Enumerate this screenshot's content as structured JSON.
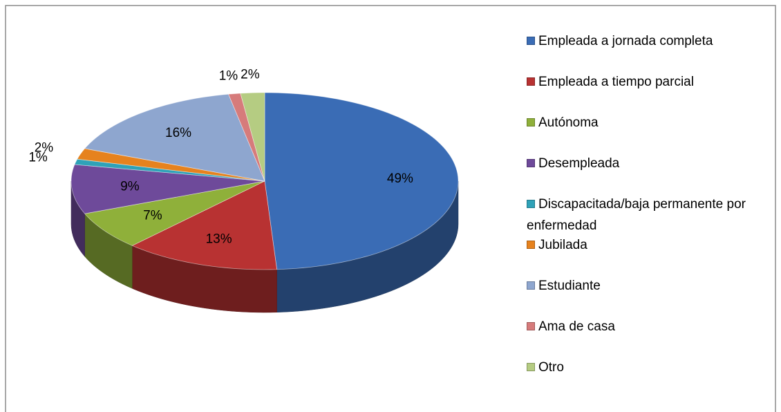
{
  "chart_data": {
    "type": "pie",
    "categories": [
      "Empleada a jornada completa",
      "Empleada a tiempo parcial",
      "Autónoma",
      "Desempleada",
      "Discapacitada/baja permanente por enfermedad",
      "Jubilada",
      "Estudiante",
      "Ama de casa",
      "Otro"
    ],
    "values": [
      49,
      13,
      7,
      9,
      1,
      2,
      16,
      1,
      2
    ],
    "value_labels": [
      "49%",
      "13%",
      "7%",
      "9%",
      "1%",
      "2%",
      "16%",
      "1%",
      "2%"
    ],
    "colors": [
      "#3a6cb5",
      "#b83232",
      "#8fb03a",
      "#6e4a9a",
      "#2fa2b8",
      "#e6821e",
      "#8ea6cf",
      "#d67b7b",
      "#b5cc82"
    ],
    "legend": "right"
  }
}
